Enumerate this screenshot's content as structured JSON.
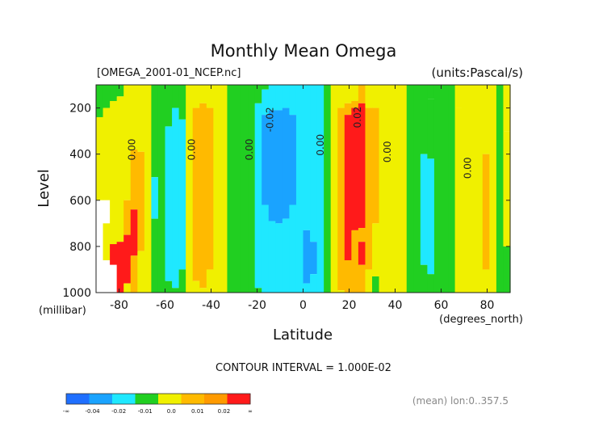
{
  "chart_data": {
    "type": "heatmap",
    "title": "Monthly Mean Omega",
    "file_label": "[OMEGA_2001-01_NCEP.nc]",
    "units_label": "(units:Pascal/s)",
    "xlabel": "Latitude",
    "x_unit": "(degrees_north)",
    "ylabel": "Level",
    "y_unit": "(millibar)",
    "xlim": [
      -90,
      90
    ],
    "ylim": [
      1000,
      100
    ],
    "x_ticks": [
      -80,
      -60,
      -40,
      -20,
      0,
      20,
      40,
      60,
      80
    ],
    "y_ticks": [
      200,
      400,
      600,
      800,
      1000
    ],
    "contour_interval_text": "CONTOUR INTERVAL = 1.000E-02",
    "footer_text": "(mean) lon:0..357.5",
    "contour_labels": [
      {
        "text": "0.00",
        "lat": -73,
        "level": 380
      },
      {
        "text": "0.00",
        "lat": -47,
        "level": 380
      },
      {
        "text": "0.00",
        "lat": -22,
        "level": 380
      },
      {
        "text": "-0.02",
        "lat": -13,
        "level": 250
      },
      {
        "text": "0.00",
        "lat": 9,
        "level": 360
      },
      {
        "text": "0.02",
        "lat": 25,
        "level": 240
      },
      {
        "text": "0.00",
        "lat": 38,
        "level": 390
      },
      {
        "text": "0.00",
        "lat": 73,
        "level": 460
      }
    ],
    "colorbar": {
      "colors": [
        "#1f6fff",
        "#1aa3ff",
        "#1fe8ff",
        "#21cf21",
        "#f0f000",
        "#ffba00",
        "#ff9a00",
        "#ff1a1a"
      ],
      "tick_labels": [
        "-∞",
        "-0.04",
        "-0.02",
        "-0.01",
        "0.0",
        "0.01",
        "0.02",
        "∞"
      ]
    },
    "bands": [
      {
        "lat": -90,
        "segs": [
          [
            100,
            240,
            "#21cf21"
          ],
          [
            240,
            600,
            "#f0f000"
          ],
          [
            600,
            1000,
            "#ffffff"
          ]
        ]
      },
      {
        "lat": -87,
        "segs": [
          [
            100,
            200,
            "#21cf21"
          ],
          [
            200,
            600,
            "#f0f000"
          ],
          [
            600,
            700,
            "#ffffff"
          ],
          [
            700,
            860,
            "#f0f000"
          ],
          [
            860,
            1000,
            "#ffffff"
          ]
        ]
      },
      {
        "lat": -84,
        "segs": [
          [
            100,
            170,
            "#21cf21"
          ],
          [
            170,
            790,
            "#f0f000"
          ],
          [
            790,
            880,
            "#ff1a1a"
          ],
          [
            880,
            1000,
            "#ffffff"
          ]
        ]
      },
      {
        "lat": -81,
        "segs": [
          [
            100,
            150,
            "#21cf21"
          ],
          [
            150,
            780,
            "#f0f000"
          ],
          [
            780,
            1000,
            "#ff1a1a"
          ]
        ]
      },
      {
        "lat": -78,
        "segs": [
          [
            100,
            600,
            "#f0f000"
          ],
          [
            600,
            750,
            "#ffba00"
          ],
          [
            750,
            960,
            "#ff1a1a"
          ],
          [
            960,
            1000,
            "#f0f000"
          ]
        ]
      },
      {
        "lat": -75,
        "segs": [
          [
            100,
            380,
            "#f0f000"
          ],
          [
            380,
            640,
            "#ffba00"
          ],
          [
            640,
            840,
            "#ff1a1a"
          ],
          [
            840,
            1000,
            "#ffba00"
          ]
        ]
      },
      {
        "lat": -72,
        "segs": [
          [
            100,
            390,
            "#f0f000"
          ],
          [
            390,
            820,
            "#ffba00"
          ],
          [
            820,
            1000,
            "#f0f000"
          ]
        ]
      },
      {
        "lat": -69,
        "segs": [
          [
            100,
            1000,
            "#f0f000"
          ]
        ]
      },
      {
        "lat": -66,
        "segs": [
          [
            100,
            500,
            "#21cf21"
          ],
          [
            500,
            680,
            "#1fe8ff"
          ],
          [
            680,
            1000,
            "#21cf21"
          ]
        ]
      },
      {
        "lat": -63,
        "segs": [
          [
            100,
            1000,
            "#21cf21"
          ]
        ]
      },
      {
        "lat": -60,
        "segs": [
          [
            100,
            280,
            "#21cf21"
          ],
          [
            280,
            950,
            "#1fe8ff"
          ],
          [
            950,
            1000,
            "#21cf21"
          ]
        ]
      },
      {
        "lat": -57,
        "segs": [
          [
            100,
            200,
            "#21cf21"
          ],
          [
            200,
            980,
            "#1fe8ff"
          ],
          [
            980,
            1000,
            "#21cf21"
          ]
        ]
      },
      {
        "lat": -54,
        "segs": [
          [
            100,
            250,
            "#21cf21"
          ],
          [
            250,
            900,
            "#1fe8ff"
          ],
          [
            900,
            1000,
            "#21cf21"
          ]
        ]
      },
      {
        "lat": -51,
        "segs": [
          [
            100,
            1000,
            "#f0f000"
          ]
        ]
      },
      {
        "lat": -48,
        "segs": [
          [
            100,
            200,
            "#f0f000"
          ],
          [
            200,
            950,
            "#ffba00"
          ],
          [
            950,
            1000,
            "#f0f000"
          ]
        ]
      },
      {
        "lat": -45,
        "segs": [
          [
            100,
            180,
            "#f0f000"
          ],
          [
            180,
            980,
            "#ffba00"
          ],
          [
            980,
            1000,
            "#f0f000"
          ]
        ]
      },
      {
        "lat": -42,
        "segs": [
          [
            100,
            200,
            "#f0f000"
          ],
          [
            200,
            900,
            "#ffba00"
          ],
          [
            900,
            1000,
            "#f0f000"
          ]
        ]
      },
      {
        "lat": -39,
        "segs": [
          [
            100,
            1000,
            "#f0f000"
          ]
        ]
      },
      {
        "lat": -36,
        "segs": [
          [
            100,
            1000,
            "#f0f000"
          ]
        ]
      },
      {
        "lat": -33,
        "segs": [
          [
            100,
            1000,
            "#21cf21"
          ]
        ]
      },
      {
        "lat": -30,
        "segs": [
          [
            100,
            1000,
            "#21cf21"
          ]
        ]
      },
      {
        "lat": -27,
        "segs": [
          [
            100,
            1000,
            "#21cf21"
          ]
        ]
      },
      {
        "lat": -24,
        "segs": [
          [
            100,
            1000,
            "#21cf21"
          ]
        ]
      },
      {
        "lat": -21,
        "segs": [
          [
            100,
            180,
            "#21cf21"
          ],
          [
            180,
            980,
            "#1fe8ff"
          ],
          [
            980,
            1000,
            "#21cf21"
          ]
        ]
      },
      {
        "lat": -18,
        "segs": [
          [
            100,
            120,
            "#21cf21"
          ],
          [
            120,
            230,
            "#1fe8ff"
          ],
          [
            230,
            620,
            "#1aa3ff"
          ],
          [
            620,
            1000,
            "#1fe8ff"
          ]
        ]
      },
      {
        "lat": -15,
        "segs": [
          [
            100,
            210,
            "#1fe8ff"
          ],
          [
            210,
            690,
            "#1aa3ff"
          ],
          [
            690,
            1000,
            "#1fe8ff"
          ]
        ]
      },
      {
        "lat": -12,
        "segs": [
          [
            100,
            210,
            "#1fe8ff"
          ],
          [
            210,
            700,
            "#1aa3ff"
          ],
          [
            700,
            1000,
            "#1fe8ff"
          ]
        ]
      },
      {
        "lat": -9,
        "segs": [
          [
            100,
            200,
            "#1fe8ff"
          ],
          [
            200,
            680,
            "#1aa3ff"
          ],
          [
            680,
            1000,
            "#1fe8ff"
          ]
        ]
      },
      {
        "lat": -6,
        "segs": [
          [
            100,
            230,
            "#1fe8ff"
          ],
          [
            230,
            620,
            "#1aa3ff"
          ],
          [
            620,
            1000,
            "#1fe8ff"
          ]
        ]
      },
      {
        "lat": -3,
        "segs": [
          [
            100,
            1000,
            "#1fe8ff"
          ]
        ]
      },
      {
        "lat": 0,
        "segs": [
          [
            100,
            730,
            "#1fe8ff"
          ],
          [
            730,
            960,
            "#1aa3ff"
          ],
          [
            960,
            1000,
            "#1fe8ff"
          ]
        ]
      },
      {
        "lat": 3,
        "segs": [
          [
            100,
            780,
            "#1fe8ff"
          ],
          [
            780,
            920,
            "#1aa3ff"
          ],
          [
            920,
            1000,
            "#1fe8ff"
          ]
        ]
      },
      {
        "lat": 6,
        "segs": [
          [
            100,
            1000,
            "#1fe8ff"
          ]
        ]
      },
      {
        "lat": 9,
        "segs": [
          [
            100,
            1000,
            "#21cf21"
          ]
        ]
      },
      {
        "lat": 12,
        "segs": [
          [
            100,
            1000,
            "#f0f000"
          ]
        ]
      },
      {
        "lat": 15,
        "segs": [
          [
            100,
            200,
            "#f0f000"
          ],
          [
            200,
            990,
            "#ffba00"
          ],
          [
            990,
            1000,
            "#f0f000"
          ]
        ]
      },
      {
        "lat": 18,
        "segs": [
          [
            100,
            180,
            "#f0f000"
          ],
          [
            180,
            230,
            "#ffba00"
          ],
          [
            230,
            860,
            "#ff1a1a"
          ],
          [
            860,
            1000,
            "#ffba00"
          ]
        ]
      },
      {
        "lat": 21,
        "segs": [
          [
            100,
            170,
            "#f0f000"
          ],
          [
            170,
            200,
            "#ffba00"
          ],
          [
            200,
            730,
            "#ff1a1a"
          ],
          [
            730,
            1000,
            "#ffba00"
          ]
        ]
      },
      {
        "lat": 24,
        "segs": [
          [
            100,
            180,
            "#ffba00"
          ],
          [
            180,
            720,
            "#ff1a1a"
          ],
          [
            720,
            780,
            "#ffba00"
          ],
          [
            780,
            880,
            "#ff1a1a"
          ],
          [
            880,
            1000,
            "#ffba00"
          ]
        ]
      },
      {
        "lat": 27,
        "segs": [
          [
            100,
            200,
            "#f0f000"
          ],
          [
            200,
            900,
            "#ffba00"
          ],
          [
            900,
            1000,
            "#f0f000"
          ]
        ]
      },
      {
        "lat": 30,
        "segs": [
          [
            100,
            200,
            "#f0f000"
          ],
          [
            200,
            700,
            "#ffba00"
          ],
          [
            700,
            930,
            "#f0f000"
          ],
          [
            930,
            1000,
            "#21cf21"
          ]
        ]
      },
      {
        "lat": 33,
        "segs": [
          [
            100,
            1000,
            "#f0f000"
          ]
        ]
      },
      {
        "lat": 36,
        "segs": [
          [
            100,
            1000,
            "#f0f000"
          ]
        ]
      },
      {
        "lat": 39,
        "segs": [
          [
            100,
            1000,
            "#f0f000"
          ]
        ]
      },
      {
        "lat": 42,
        "segs": [
          [
            100,
            1000,
            "#f0f000"
          ]
        ]
      },
      {
        "lat": 45,
        "segs": [
          [
            100,
            1000,
            "#21cf21"
          ]
        ]
      },
      {
        "lat": 48,
        "segs": [
          [
            100,
            1000,
            "#21cf21"
          ]
        ]
      },
      {
        "lat": 51,
        "segs": [
          [
            100,
            400,
            "#21cf21"
          ],
          [
            400,
            880,
            "#1fe8ff"
          ],
          [
            880,
            1000,
            "#21cf21"
          ]
        ]
      },
      {
        "lat": 54,
        "segs": [
          [
            100,
            160,
            "#21cf21"
          ],
          [
            160,
            420,
            "#21cf21"
          ],
          [
            420,
            920,
            "#1fe8ff"
          ],
          [
            920,
            1000,
            "#21cf21"
          ]
        ]
      },
      {
        "lat": 57,
        "segs": [
          [
            100,
            1000,
            "#21cf21"
          ]
        ]
      },
      {
        "lat": 60,
        "segs": [
          [
            100,
            1000,
            "#21cf21"
          ]
        ]
      },
      {
        "lat": 63,
        "segs": [
          [
            100,
            1000,
            "#21cf21"
          ]
        ]
      },
      {
        "lat": 66,
        "segs": [
          [
            100,
            200,
            "#f0f000"
          ],
          [
            200,
            1000,
            "#f0f000"
          ]
        ]
      },
      {
        "lat": 69,
        "segs": [
          [
            100,
            1000,
            "#f0f000"
          ]
        ]
      },
      {
        "lat": 72,
        "segs": [
          [
            100,
            1000,
            "#f0f000"
          ]
        ]
      },
      {
        "lat": 75,
        "segs": [
          [
            100,
            1000,
            "#f0f000"
          ]
        ]
      },
      {
        "lat": 78,
        "segs": [
          [
            100,
            400,
            "#f0f000"
          ],
          [
            400,
            900,
            "#ffba00"
          ],
          [
            900,
            1000,
            "#f0f000"
          ]
        ]
      },
      {
        "lat": 81,
        "segs": [
          [
            100,
            1000,
            "#f0f000"
          ]
        ]
      },
      {
        "lat": 84,
        "segs": [
          [
            100,
            1000,
            "#21cf21"
          ]
        ]
      },
      {
        "lat": 87,
        "segs": [
          [
            100,
            300,
            "#f0f000"
          ],
          [
            300,
            800,
            "#f0f000"
          ],
          [
            800,
            1000,
            "#21cf21"
          ]
        ]
      }
    ]
  }
}
